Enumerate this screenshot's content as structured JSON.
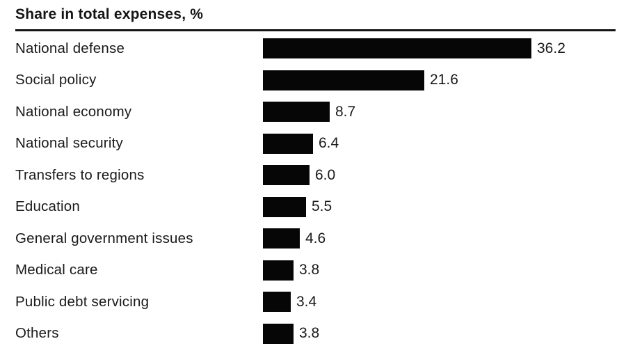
{
  "title": "Share in total expenses, %",
  "colors": {
    "bar": "#060606",
    "text": "#1a1a1a",
    "rule": "#141414",
    "background": "#ffffff"
  },
  "chart_data": {
    "type": "bar",
    "orientation": "horizontal",
    "title": "Share in total expenses, %",
    "categories": [
      "National defense",
      "Social policy",
      "National economy",
      "National security",
      "Transfers to regions",
      "Education",
      "General government issues",
      "Medical care",
      "Public debt servicing",
      "Others"
    ],
    "values": [
      36.2,
      21.6,
      8.7,
      6.4,
      6.0,
      5.5,
      4.6,
      3.8,
      3.4,
      3.8
    ],
    "value_labels": [
      "36.2",
      "21.6",
      "8.7",
      "6.4",
      "6.0",
      "5.5",
      "4.6",
      "3.8",
      "3.4",
      "3.8"
    ],
    "xlabel": "",
    "ylabel": "",
    "xlim": [
      0,
      36.2
    ],
    "grid": false,
    "legend": "none",
    "data_labels": "end-of-bar"
  }
}
